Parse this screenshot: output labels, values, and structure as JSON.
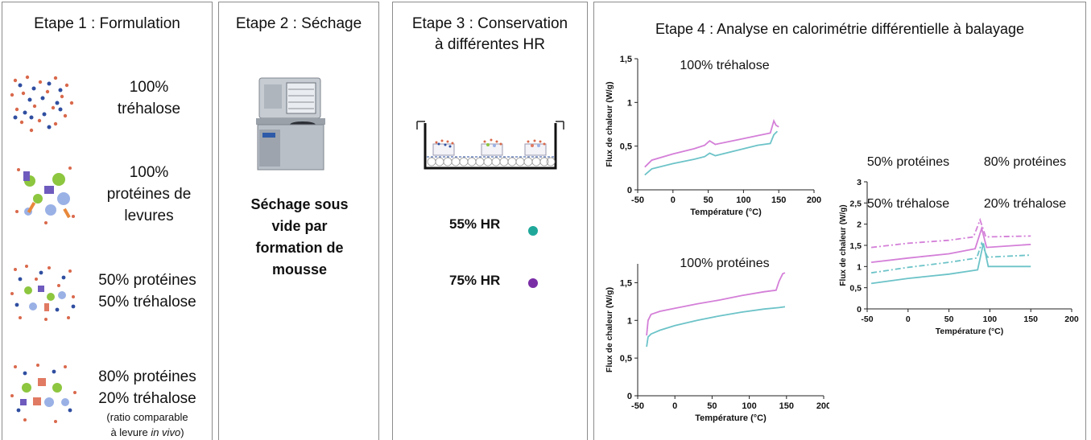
{
  "steps": [
    {
      "title": "Etape 1 : Formulation"
    },
    {
      "title": "Etape 2 : Séchage"
    },
    {
      "title": "Etape 3 : Conservation\nà différentes HR"
    },
    {
      "title": "Etape 4 : Analyse en calorimétrie différentielle à balayage"
    }
  ],
  "formulations": [
    {
      "label": "100%\ntréhalose"
    },
    {
      "label": "100%\nprotéines de\nlevures"
    },
    {
      "label": "50% protéines\n50% tréhalose"
    },
    {
      "label": "80% protéines\n20% tréhalose"
    }
  ],
  "formulation_note": {
    "line1": "(ratio comparable",
    "line2_prefix": "à levure ",
    "line2_italic": "in vivo",
    "line2_suffix": ")"
  },
  "drying": {
    "text": "Séchage sous\nvide par\nformation de\nmousse"
  },
  "storage": {
    "conditions": [
      {
        "label": "55% HR",
        "color": "#1fa89a"
      },
      {
        "label": "75% HR",
        "color": "#7a2ea6"
      }
    ]
  },
  "colors": {
    "pink": "#d47fd8",
    "teal": "#6cc3c8",
    "panel_border": "#8c8c8c"
  },
  "chart_data": [
    {
      "type": "line",
      "title": "100% tréhalose",
      "xlabel": "Température (°C)",
      "ylabel": "Flux de chaleur (W/g)",
      "xlim": [
        -50,
        200
      ],
      "ylim": [
        0,
        1.5
      ],
      "xticks": [
        "-50",
        "0",
        "50",
        "100",
        "150",
        "200"
      ],
      "yticks": [
        "0",
        "0,5",
        "1",
        "1,5"
      ],
      "series": [
        {
          "color": "#d47fd8",
          "x": [
            -40,
            -30,
            0,
            30,
            45,
            52,
            60,
            90,
            120,
            138,
            143,
            146,
            150
          ],
          "y": [
            0.26,
            0.34,
            0.41,
            0.47,
            0.51,
            0.56,
            0.52,
            0.57,
            0.62,
            0.65,
            0.79,
            0.74,
            0.72
          ]
        },
        {
          "color": "#6cc3c8",
          "x": [
            -40,
            -30,
            0,
            30,
            45,
            52,
            60,
            90,
            120,
            138,
            143,
            148
          ],
          "y": [
            0.17,
            0.24,
            0.3,
            0.35,
            0.38,
            0.42,
            0.39,
            0.45,
            0.51,
            0.53,
            0.63,
            0.67
          ]
        }
      ]
    },
    {
      "type": "line",
      "title": "100% protéines",
      "xlabel": "Température (°C)",
      "ylabel": "Flux de chaleur (W/g)",
      "xlim": [
        -50,
        200
      ],
      "ylim": [
        0,
        1.75
      ],
      "xticks": [
        "-50",
        "0",
        "50",
        "100",
        "150",
        "200"
      ],
      "yticks": [
        "0",
        "0,5",
        "1",
        "1,5"
      ],
      "series": [
        {
          "color": "#d47fd8",
          "x": [
            -38,
            -36,
            -32,
            -20,
            0,
            30,
            60,
            90,
            120,
            136,
            140,
            145,
            148
          ],
          "y": [
            0.8,
            1.0,
            1.08,
            1.12,
            1.16,
            1.22,
            1.27,
            1.33,
            1.38,
            1.4,
            1.52,
            1.62,
            1.63
          ]
        },
        {
          "color": "#6cc3c8",
          "x": [
            -38,
            -36,
            -32,
            -20,
            0,
            30,
            60,
            90,
            120,
            140,
            148
          ],
          "y": [
            0.65,
            0.78,
            0.82,
            0.87,
            0.93,
            1.0,
            1.06,
            1.11,
            1.15,
            1.17,
            1.18
          ]
        }
      ]
    },
    {
      "type": "line",
      "title": "",
      "xlabel": "Température (°C)",
      "ylabel": "Flux de chaleur (W/g)",
      "xlim": [
        -50,
        200
      ],
      "ylim": [
        0,
        3
      ],
      "xticks": [
        "-50",
        "0",
        "50",
        "100",
        "150",
        "200"
      ],
      "yticks": [
        "0",
        "0,5",
        "1",
        "1,5",
        "2",
        "2,5",
        "3"
      ],
      "legend_labels": [
        {
          "line1": "50% protéines",
          "line2": "50% tréhalose"
        },
        {
          "line1": "80% protéines",
          "line2": "20% tréhalose"
        }
      ],
      "series": [
        {
          "color": "#d47fd8",
          "dashed": true,
          "x": [
            -45,
            0,
            50,
            80,
            88,
            95,
            150
          ],
          "y": [
            1.45,
            1.55,
            1.62,
            1.7,
            2.1,
            1.7,
            1.72
          ]
        },
        {
          "color": "#d47fd8",
          "dashed": false,
          "x": [
            -45,
            0,
            50,
            82,
            90,
            96,
            150
          ],
          "y": [
            1.1,
            1.2,
            1.3,
            1.42,
            1.9,
            1.45,
            1.52
          ]
        },
        {
          "color": "#6cc3c8",
          "dashed": true,
          "x": [
            -45,
            0,
            50,
            84,
            90,
            97,
            150
          ],
          "y": [
            0.85,
            0.98,
            1.1,
            1.2,
            1.55,
            1.22,
            1.27
          ]
        },
        {
          "color": "#6cc3c8",
          "dashed": false,
          "x": [
            -45,
            0,
            50,
            85,
            92,
            98,
            150
          ],
          "y": [
            0.6,
            0.72,
            0.82,
            0.92,
            1.55,
            1.0,
            1.0
          ]
        }
      ]
    }
  ]
}
